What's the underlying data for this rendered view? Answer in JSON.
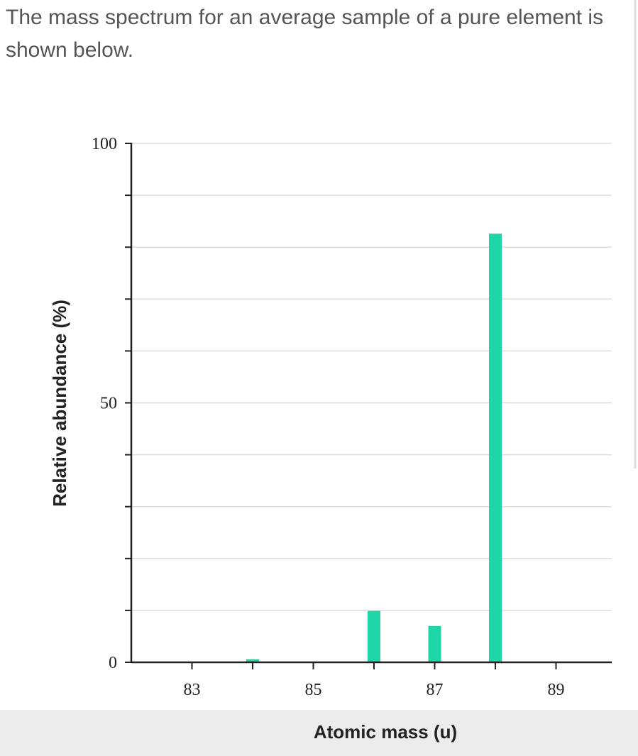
{
  "intro": "The mass spectrum for an average sample of a pure element is shown below.",
  "chart_data": {
    "type": "bar",
    "x": [
      84,
      86,
      87,
      88
    ],
    "values": [
      0.6,
      9.9,
      7.0,
      82.6
    ],
    "color": "#1fd6a6",
    "xlabel": "Atomic mass (u)",
    "ylabel": "Relative abundance (%)",
    "xlim": [
      82,
      90
    ],
    "xticks": [
      83,
      85,
      87,
      89
    ],
    "minor_xticks": [
      84,
      86,
      88
    ],
    "ylim": [
      0,
      100
    ],
    "yticks": [
      0,
      50,
      100
    ],
    "minor_yticks": [
      10,
      20,
      30,
      40,
      60,
      70,
      80,
      90
    ],
    "grid": true
  }
}
